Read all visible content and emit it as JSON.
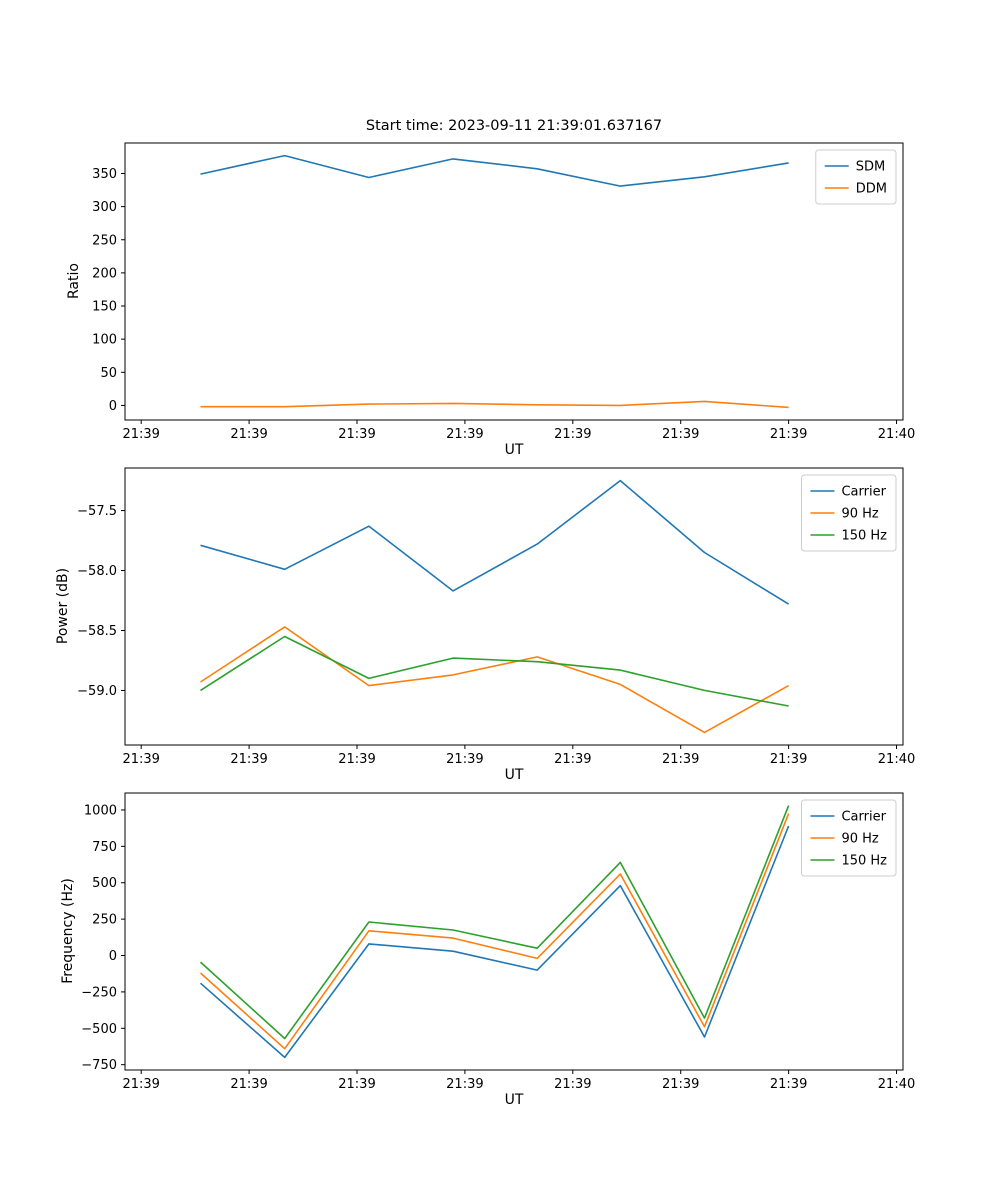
{
  "figure": {
    "background": "#ffffff"
  },
  "chart_data": [
    {
      "type": "line",
      "title": "Start time: 2023-09-11 21:39:01.637167",
      "xlabel": "UT",
      "ylabel": "Ratio",
      "grid": false,
      "legend_position": "upper right",
      "xlim": [
        -0.15,
        7.06
      ],
      "ylim": [
        -22,
        396
      ],
      "x_tick_positions": [
        0,
        1,
        2,
        3,
        4,
        5,
        6,
        7
      ],
      "x_ticklabels": [
        "21:39",
        "21:39",
        "21:39",
        "21:39",
        "21:39",
        "21:39",
        "21:39",
        "21:40"
      ],
      "y_ticks": [
        0,
        50,
        100,
        150,
        200,
        250,
        300,
        350
      ],
      "y_ticklabels": [
        "0",
        "50",
        "100",
        "150",
        "200",
        "250",
        "300",
        "350"
      ],
      "x": [
        0.55,
        1.33,
        2.11,
        2.89,
        3.67,
        4.44,
        5.22,
        6.0
      ],
      "series": [
        {
          "name": "SDM",
          "color": "#1f77b4",
          "values": [
            349,
            377,
            344,
            372,
            357,
            331,
            345,
            366
          ]
        },
        {
          "name": "DDM",
          "color": "#ff7f0e",
          "values": [
            -2,
            -2,
            2,
            3,
            1,
            0,
            6,
            -3
          ]
        }
      ]
    },
    {
      "type": "line",
      "title": "",
      "xlabel": "UT",
      "ylabel": "Power (dB)",
      "grid": false,
      "legend_position": "upper right",
      "xlim": [
        -0.15,
        7.06
      ],
      "ylim": [
        -59.455,
        -57.145
      ],
      "x_tick_positions": [
        0,
        1,
        2,
        3,
        4,
        5,
        6,
        7
      ],
      "x_ticklabels": [
        "21:39",
        "21:39",
        "21:39",
        "21:39",
        "21:39",
        "21:39",
        "21:39",
        "21:40"
      ],
      "y_ticks": [
        -57.5,
        -58.0,
        -58.5,
        -59.0
      ],
      "y_ticklabels": [
        "−57.5",
        "−58.0",
        "−58.5",
        "−59.0"
      ],
      "x": [
        0.55,
        1.33,
        2.11,
        2.89,
        3.67,
        4.44,
        5.22,
        6.0
      ],
      "series": [
        {
          "name": "Carrier",
          "color": "#1f77b4",
          "values": [
            -57.79,
            -57.99,
            -57.63,
            -58.17,
            -57.78,
            -57.25,
            -57.85,
            -58.28
          ]
        },
        {
          "name": "90 Hz",
          "color": "#ff7f0e",
          "values": [
            -58.93,
            -58.47,
            -58.96,
            -58.87,
            -58.72,
            -58.95,
            -59.35,
            -58.96
          ]
        },
        {
          "name": "150 Hz",
          "color": "#2ca02c",
          "values": [
            -59.0,
            -58.55,
            -58.9,
            -58.73,
            -58.76,
            -58.83,
            -59.0,
            -59.13
          ]
        }
      ]
    },
    {
      "type": "line",
      "title": "",
      "xlabel": "UT",
      "ylabel": "Frequency (Hz)",
      "grid": false,
      "legend_position": "upper right",
      "xlim": [
        -0.15,
        7.06
      ],
      "ylim": [
        -786.5,
        1116.5
      ],
      "x_tick_positions": [
        0,
        1,
        2,
        3,
        4,
        5,
        6,
        7
      ],
      "x_ticklabels": [
        "21:39",
        "21:39",
        "21:39",
        "21:39",
        "21:39",
        "21:39",
        "21:39",
        "21:40"
      ],
      "y_ticks": [
        -750,
        -500,
        -250,
        0,
        250,
        500,
        750,
        1000
      ],
      "y_ticklabels": [
        "−750",
        "−500",
        "−250",
        "0",
        "250",
        "500",
        "750",
        "1000"
      ],
      "x": [
        0.55,
        1.33,
        2.11,
        2.89,
        3.67,
        4.44,
        5.22,
        6.0
      ],
      "series": [
        {
          "name": "Carrier",
          "color": "#1f77b4",
          "values": [
            -190,
            -700,
            80,
            30,
            -100,
            480,
            -560,
            890
          ]
        },
        {
          "name": "90 Hz",
          "color": "#ff7f0e",
          "values": [
            -120,
            -640,
            170,
            120,
            -20,
            560,
            -490,
            975
          ]
        },
        {
          "name": "150 Hz",
          "color": "#2ca02c",
          "values": [
            -45,
            -570,
            230,
            175,
            50,
            640,
            -430,
            1030
          ]
        }
      ]
    }
  ]
}
